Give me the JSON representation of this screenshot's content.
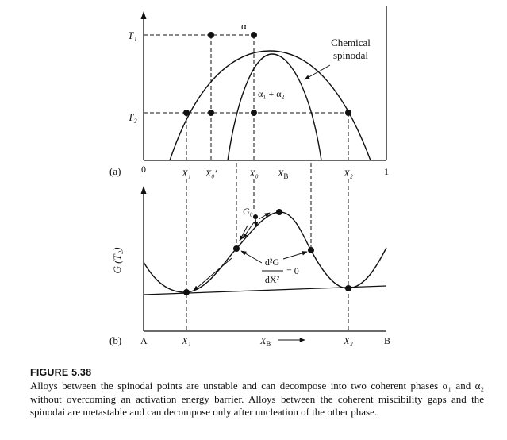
{
  "figure": {
    "panel_a": {
      "label": "(a)",
      "alpha_label": "α",
      "two_phase_label": "α₁ + α₂",
      "t1_label": "T₁",
      "t2_label": "T₂",
      "chemical_spinodal_line1": "Chemical",
      "chemical_spinodal_line2": "spinodal",
      "x_ticks": {
        "zero": "0",
        "x1": "X₁",
        "x0_prime": "X₀′",
        "x0": "X₀",
        "xb": "X",
        "xb_sub": "B",
        "x2": "X₂",
        "one": "1"
      }
    },
    "panel_b": {
      "label": "(b)",
      "ylabel": "G (T₂)",
      "g0_label": "G₀",
      "second_derivative_num": "d²G",
      "second_derivative_den": "dX²",
      "second_derivative_eq": "= 0",
      "x_ticks": {
        "a": "A",
        "x1": "X₁",
        "xb": "X",
        "xb_sub": "B",
        "x2": "X₂",
        "b": "B"
      }
    }
  },
  "caption": {
    "title": "FIGURE 5.38",
    "text": "Alloys between the spinodai points are unstable and can decompose into two coherent phases α₁ and α₂ without overcoming an activation energy barrier. Alloys between the coherent miscibility gaps and the spinodai are metastable and can decompose only after nucleation of the other phase."
  }
}
